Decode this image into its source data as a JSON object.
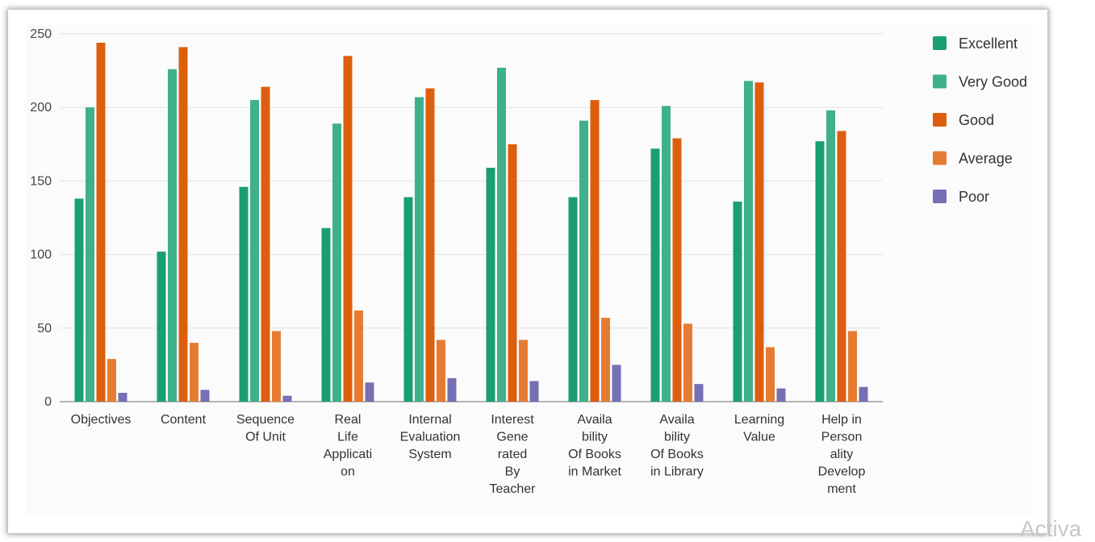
{
  "watermark": "Activa",
  "chart_data": {
    "type": "bar",
    "title": "",
    "xlabel": "",
    "ylabel": "",
    "ylim": [
      0,
      250
    ],
    "yticks": [
      0,
      50,
      100,
      150,
      200,
      250
    ],
    "grid": true,
    "legend_position": "right",
    "categories": [
      [
        "Objectives"
      ],
      [
        "Content"
      ],
      [
        "Sequence",
        "Of Unit"
      ],
      [
        "Real",
        "Life",
        "Applicati",
        "on"
      ],
      [
        "Internal",
        "Evaluation",
        "System"
      ],
      [
        "Interest",
        "Gene",
        "rated",
        "By",
        "Teacher"
      ],
      [
        "Availa",
        "bility",
        "Of Books",
        "in Market"
      ],
      [
        "Availa",
        "bility",
        "Of Books",
        "in Library"
      ],
      [
        "Learning",
        "Value"
      ],
      [
        "Help in",
        "Person",
        "ality",
        "Develop",
        "ment"
      ]
    ],
    "series": [
      {
        "name": "Excellent",
        "color": "#1a9e74",
        "values": [
          138,
          102,
          146,
          118,
          139,
          159,
          139,
          172,
          136,
          177
        ]
      },
      {
        "name": "Very Good",
        "color": "#3eb08a",
        "values": [
          200,
          226,
          205,
          189,
          207,
          227,
          191,
          201,
          218,
          198
        ]
      },
      {
        "name": "Good",
        "color": "#dd5f0e",
        "values": [
          244,
          241,
          214,
          235,
          213,
          175,
          205,
          179,
          217,
          184
        ]
      },
      {
        "name": "Average",
        "color": "#e67c31",
        "values": [
          29,
          40,
          48,
          62,
          42,
          42,
          57,
          53,
          37,
          48
        ]
      },
      {
        "name": "Poor",
        "color": "#7570b3",
        "values": [
          6,
          8,
          4,
          13,
          16,
          14,
          25,
          12,
          9,
          10
        ]
      }
    ]
  }
}
